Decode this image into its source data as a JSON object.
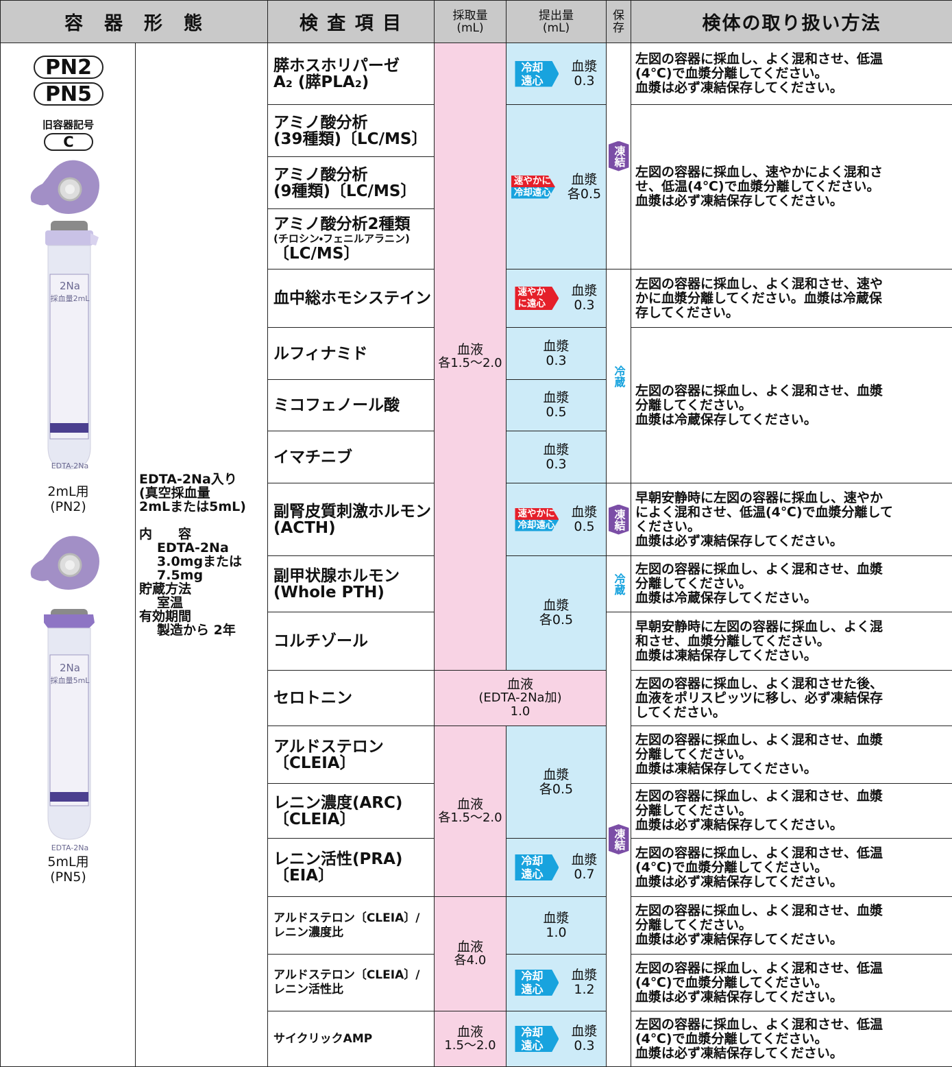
{
  "header": {
    "container": "容　器　形　態",
    "test": "検 査 項 目",
    "collect": [
      "採取量",
      "(mL)"
    ],
    "submit": [
      "提出量",
      "(mL)"
    ],
    "storage": [
      "保",
      "存"
    ],
    "handling": "検体の取り扱い方法"
  },
  "container": {
    "codes": [
      "PN2",
      "PN5"
    ],
    "old_code_label": "旧容器記号",
    "old_code": "C",
    "tubes": [
      {
        "labels": [
          "2Na",
          "採血量2mL",
          "EDTA-2Na"
        ],
        "caption": [
          "2mL用",
          "(PN2)"
        ]
      },
      {
        "labels": [
          "2Na",
          "採血量5mL",
          "EDTA-2Na"
        ],
        "caption": [
          "5mL用",
          "(PN5)"
        ]
      }
    ]
  },
  "description": {
    "intro": [
      "EDTA-2Na入り",
      "(真空採血量",
      "2mLまたは5mL)"
    ],
    "items": [
      {
        "label": "内　　容",
        "lines": [
          "EDTA-2Na",
          "3.0mgまたは",
          "7.5mg"
        ]
      },
      {
        "label": "貯蔵方法",
        "lines": [
          "室温"
        ]
      },
      {
        "label": "有効期間",
        "lines": [
          "製造から 2年"
        ]
      }
    ]
  },
  "tests": [
    [
      "膵ホスホリパーゼ",
      "A₂ (膵PLA₂)"
    ],
    [
      "アミノ酸分析",
      "(39種類)〔LC/MS〕"
    ],
    [
      "アミノ酸分析",
      "(9種類)〔LC/MS〕"
    ],
    [
      "アミノ酸分析2種類",
      "(チロシン・フェニルアラニン)",
      "〔LC/MS〕"
    ],
    [
      "血中総ホモシステイン"
    ],
    [
      "ルフィナミド"
    ],
    [
      "ミコフェノール酸"
    ],
    [
      "イマチニブ"
    ],
    [
      "副腎皮質刺激ホルモン",
      "(ACTH)"
    ],
    [
      "副甲状腺ホルモン",
      "(Whole PTH)"
    ],
    [
      "コルチゾール"
    ],
    [
      "セロトニン"
    ],
    [
      "アルドステロン",
      "〔CLEIA〕"
    ],
    [
      "レニン濃度(ARC)",
      "〔CLEIA〕"
    ],
    [
      "レニン活性(PRA)",
      "〔EIA〕"
    ],
    [
      "アルドステロン〔CLEIA〕/",
      "レニン濃度比"
    ],
    [
      "アルドステロン〔CLEIA〕/",
      "レニン活性比"
    ],
    [
      "サイクリックAMP"
    ]
  ],
  "collect": [
    [
      "血液",
      "各1.5～2.0"
    ],
    [
      "血液",
      "(EDTA-2Na加)",
      "1.0"
    ],
    [
      "血液",
      "各1.5～2.0"
    ],
    [
      "血液",
      "各4.0"
    ],
    [
      "血液",
      "1.5～2.0"
    ]
  ],
  "submit": [
    {
      "badge": [
        {
          "text": "冷却",
          "color": "#18a3de"
        },
        {
          "text": "遠心",
          "color": "#18a3de"
        }
      ],
      "lines": [
        "血漿",
        "0.3"
      ]
    },
    {
      "badge": [
        {
          "text": "速やかに",
          "color": "#e5202a"
        },
        {
          "text": "冷却遠心",
          "color": "#18a3de"
        }
      ],
      "lines": [
        "血漿",
        "各0.5"
      ]
    },
    {
      "badge": [
        {
          "text": "速やか",
          "color": "#e5202a"
        },
        {
          "text": "に遠心",
          "color": "#e5202a"
        }
      ],
      "lines": [
        "血漿",
        "0.3"
      ]
    },
    {
      "lines": [
        "血漿",
        "0.3"
      ]
    },
    {
      "lines": [
        "血漿",
        "0.5"
      ]
    },
    {
      "lines": [
        "血漿",
        "0.3"
      ]
    },
    {
      "badge": [
        {
          "text": "速やかに",
          "color": "#e5202a"
        },
        {
          "text": "冷却遠心",
          "color": "#18a3de"
        }
      ],
      "lines": [
        "血漿",
        "0.5"
      ]
    },
    {
      "lines": [
        "血漿",
        "各0.5"
      ]
    },
    {
      "lines": [
        "血漿",
        "各0.5"
      ]
    },
    {
      "badge": [
        {
          "text": "冷却",
          "color": "#18a3de"
        },
        {
          "text": "遠心",
          "color": "#18a3de"
        }
      ],
      "lines": [
        "血漿",
        "0.7"
      ]
    },
    {
      "lines": [
        "血漿",
        "1.0"
      ]
    },
    {
      "badge": [
        {
          "text": "冷却",
          "color": "#18a3de"
        },
        {
          "text": "遠心",
          "color": "#18a3de"
        }
      ],
      "lines": [
        "血漿",
        "1.2"
      ]
    },
    {
      "badge": [
        {
          "text": "冷却",
          "color": "#18a3de"
        },
        {
          "text": "遠心",
          "color": "#18a3de"
        }
      ],
      "lines": [
        "血漿",
        "0.3"
      ]
    }
  ],
  "storage": [
    {
      "text": "凍結",
      "color": "#7b4ea6",
      "filled": true
    },
    {
      "text": "冷蔵",
      "color": "#18a3de",
      "filled": false
    },
    {
      "text": "凍結",
      "color": "#7b4ea6",
      "filled": true
    },
    {
      "text": "冷蔵",
      "color": "#18a3de",
      "filled": false
    },
    {
      "text": "凍結",
      "color": "#7b4ea6",
      "filled": true
    }
  ],
  "handling": [
    [
      "左図の容器に採血し、よく混和させ、低温",
      "(4℃)で血漿分離してください。",
      "血漿は必ず凍結保存してください。"
    ],
    [
      "左図の容器に採血し、速やかによく混和さ",
      "せ、低温(4℃)で血漿分離してください。",
      "血漿は必ず凍結保存してください。"
    ],
    [
      "左図の容器に採血し、よく混和させ、速や",
      "かに血漿分離してください。血漿は冷蔵保",
      "存してください。"
    ],
    [
      "左図の容器に採血し、よく混和させ、血漿",
      "分離してください。",
      "血漿は冷蔵保存してください。"
    ],
    [
      "早朝安静時に左図の容器に採血し、速やか",
      "によく混和させ、低温(4℃)で血漿分離して",
      "ください。",
      "血漿は必ず凍結保存してください。"
    ],
    [
      "左図の容器に採血し、よく混和させ、血漿",
      "分離してください。",
      "血漿は冷蔵保存してください。"
    ],
    [
      "早朝安静時に左図の容器に採血し、よく混",
      "和させ、血漿分離してください。",
      "血漿は凍結保存してください。"
    ],
    [
      "左図の容器に採血し、よく混和させた後、",
      "血液をポリスピッツに移し、必ず凍結保存",
      "してください。"
    ],
    [
      "左図の容器に採血し、よく混和させ、血漿",
      "分離してください。",
      "血漿は凍結保存してください。"
    ],
    [
      "左図の容器に採血し、よく混和させ、血漿",
      "分離してください。",
      "血漿は必ず凍結保存してください。"
    ],
    [
      "左図の容器に採血し、よく混和させ、低温",
      "(4℃)で血漿分離してください。",
      "血漿は必ず凍結保存してください。"
    ],
    [
      "左図の容器に採血し、よく混和させ、血漿",
      "分離してください。",
      "血漿は必ず凍結保存してください。"
    ],
    [
      "左図の容器に採血し、よく混和させ、低温",
      "(4℃)で血漿分離してください。",
      "血漿は必ず凍結保存してください。"
    ],
    [
      "左図の容器に採血し、よく混和させ、低温",
      "(4℃)で血漿分離してください。",
      "血漿は必ず凍結保存してください。"
    ]
  ]
}
